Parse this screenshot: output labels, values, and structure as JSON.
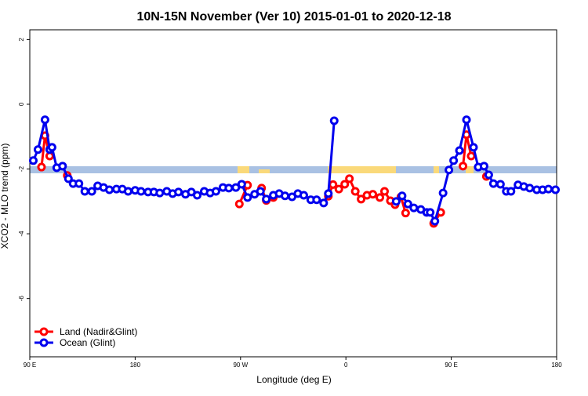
{
  "chart_data": {
    "type": "line",
    "title": "10N-15N November (Ver 10)   2015-01-01 to 2020-12-18",
    "x_label": "Longitude (deg E)",
    "y_label": "XCO2 - MLO trend (ppm)",
    "xlim": [
      90,
      540
    ],
    "ylim": [
      -7.8,
      2.3
    ],
    "xticks": [
      {
        "value": 90,
        "label": "90 E"
      },
      {
        "value": 180,
        "label": "180"
      },
      {
        "value": 270,
        "label": "90 W"
      },
      {
        "value": 360,
        "label": "0"
      },
      {
        "value": 450,
        "label": "90 E"
      },
      {
        "value": 540,
        "label": "180"
      }
    ],
    "yticks": [
      -6,
      -4,
      -2,
      0,
      2
    ],
    "legend": "bottom-left",
    "series": [
      {
        "name": "Land (Nadir&Glint)",
        "color": "#ff0000",
        "x": [
          100,
          103,
          107,
          null,
          122,
          null,
          269,
          276,
          null,
          288,
          292,
          298,
          null,
          345,
          349,
          354,
          359,
          363,
          368,
          373,
          378,
          383,
          389,
          393,
          398,
          402,
          407,
          411,
          null,
          435,
          441,
          null,
          460,
          463,
          467,
          null,
          480
        ],
        "values": [
          -1.94,
          -0.97,
          -1.6,
          null,
          -2.2,
          null,
          -3.08,
          -2.5,
          null,
          -2.59,
          -2.97,
          -2.88,
          null,
          -2.84,
          -2.48,
          -2.62,
          -2.47,
          -2.3,
          -2.69,
          -2.93,
          -2.81,
          -2.78,
          -2.88,
          -2.69,
          -2.98,
          -3.1,
          -2.86,
          -3.36,
          null,
          -3.68,
          -3.34,
          null,
          -1.91,
          -0.94,
          -1.6,
          null,
          -2.23
        ]
      },
      {
        "name": "Ocean (Glint)",
        "color": "#0000ee",
        "x": [
          93,
          97,
          103,
          107,
          109,
          113,
          118,
          123,
          127,
          132,
          137,
          143,
          148,
          153,
          158,
          164,
          169,
          174,
          180,
          185,
          191,
          196,
          201,
          207,
          212,
          217,
          223,
          228,
          233,
          239,
          244,
          249,
          255,
          260,
          266,
          271,
          276,
          282,
          287,
          292,
          298,
          303,
          308,
          314,
          319,
          324,
          330,
          335,
          341,
          345,
          350,
          null,
          403,
          408,
          413,
          418,
          424,
          429,
          432,
          436,
          443,
          448,
          452,
          457,
          463,
          469,
          473,
          478,
          482,
          486,
          492,
          497,
          501,
          507,
          512,
          517,
          523,
          528,
          533,
          539
        ],
        "values": [
          -1.74,
          -1.4,
          -0.48,
          -1.4,
          -1.33,
          -1.96,
          -1.91,
          -2.3,
          -2.45,
          -2.45,
          -2.69,
          -2.69,
          -2.52,
          -2.57,
          -2.64,
          -2.62,
          -2.62,
          -2.69,
          -2.66,
          -2.69,
          -2.71,
          -2.71,
          -2.74,
          -2.69,
          -2.76,
          -2.71,
          -2.78,
          -2.71,
          -2.81,
          -2.69,
          -2.74,
          -2.69,
          -2.57,
          -2.59,
          -2.57,
          -2.47,
          -2.88,
          -2.78,
          -2.69,
          -2.93,
          -2.81,
          -2.76,
          -2.83,
          -2.86,
          -2.76,
          -2.81,
          -2.95,
          -2.95,
          -3.05,
          -2.76,
          -0.51,
          null,
          -3.0,
          -2.83,
          -3.08,
          -3.2,
          -3.25,
          -3.34,
          -3.34,
          -3.61,
          -2.74,
          -2.03,
          -1.74,
          -1.43,
          -0.48,
          -1.33,
          -1.94,
          -1.91,
          -2.18,
          -2.45,
          -2.47,
          -2.69,
          -2.69,
          -2.49,
          -2.54,
          -2.59,
          -2.64,
          -2.64,
          -2.62,
          -2.64
        ]
      }
    ]
  }
}
